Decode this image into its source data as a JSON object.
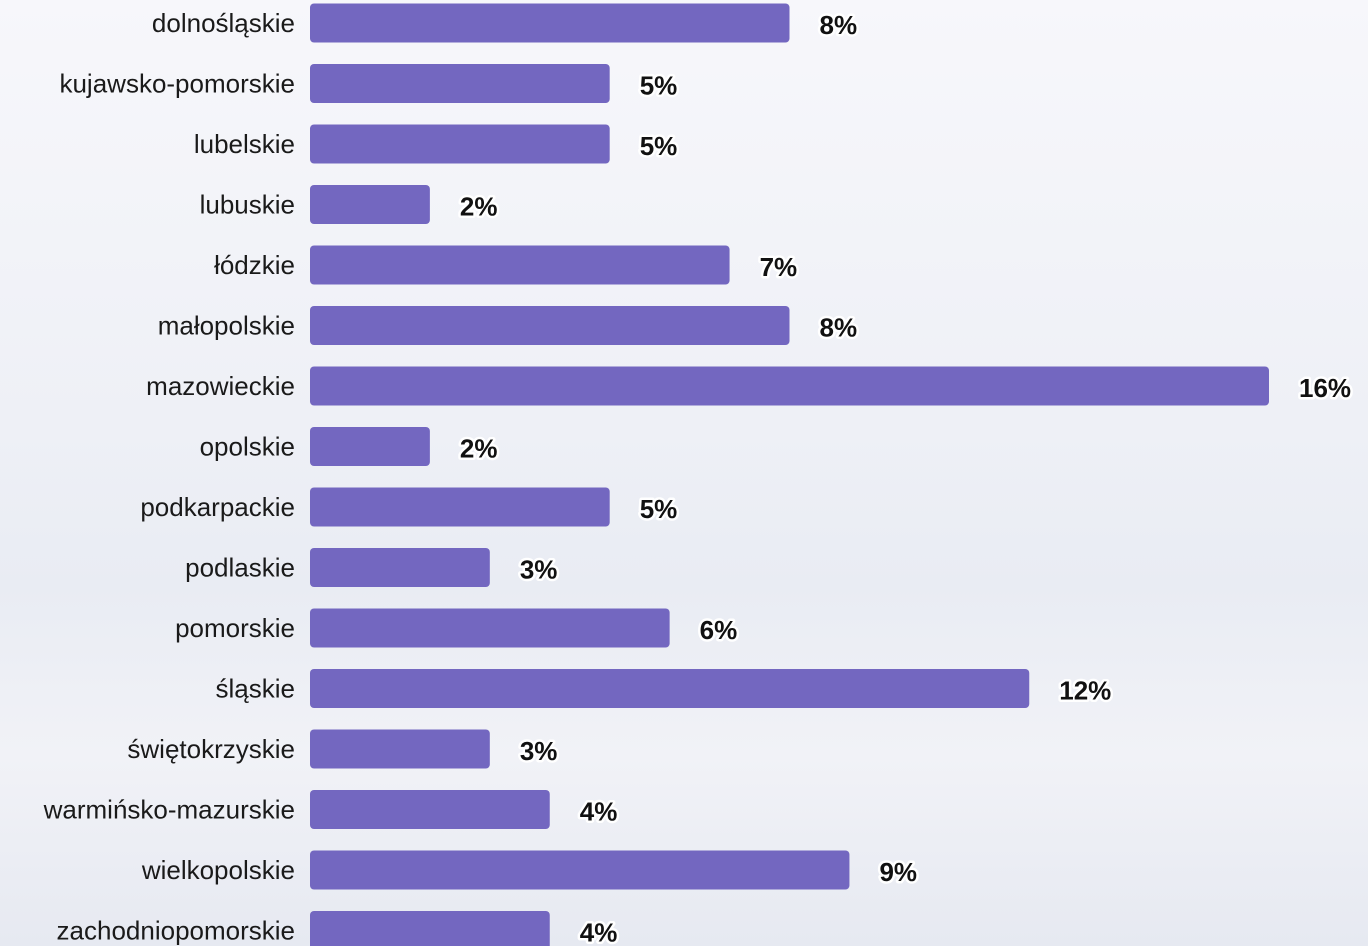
{
  "chart_data": {
    "type": "bar",
    "orientation": "horizontal",
    "categories": [
      "dolnośląskie",
      "kujawsko-pomorskie",
      "lubelskie",
      "lubuskie",
      "łódzkie",
      "małopolskie",
      "mazowieckie",
      "opolskie",
      "podkarpackie",
      "podlaskie",
      "pomorskie",
      "śląskie",
      "świętokrzyskie",
      "warmińsko-mazurskie",
      "wielkopolskie",
      "zachodniopomorskie"
    ],
    "values": [
      8,
      5,
      5,
      2,
      7,
      8,
      16,
      2,
      5,
      3,
      6,
      12,
      3,
      4,
      9,
      4
    ],
    "value_labels": [
      "8%",
      "5%",
      "5%",
      "2%",
      "7%",
      "8%",
      "16%",
      "2%",
      "5%",
      "3%",
      "6%",
      "12%",
      "3%",
      "4%",
      "9%",
      "4%"
    ],
    "unit": "%",
    "xlim": [
      0,
      16
    ],
    "grid": false,
    "bar_color": "#7367c0"
  }
}
